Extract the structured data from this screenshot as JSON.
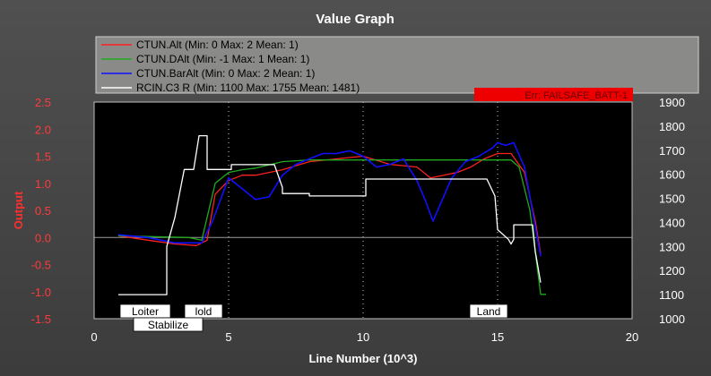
{
  "window": {
    "title": "Value Graph"
  },
  "error_banner": {
    "text": "Err: FAILSAFE_BATT-1",
    "color": "#ee0000"
  },
  "colors": {
    "background": "#000000",
    "frame": "#474747",
    "legend_bg": "#8a8a88",
    "left_axis": "#ff3b3b",
    "right_axis": "#ffffff",
    "mode_box": "#ffffff"
  },
  "chart_data": {
    "type": "line",
    "title": "Value Graph",
    "xlabel": "Line Number (10^3)",
    "ylabel": "Output",
    "xlim": [
      0,
      20
    ],
    "ylim": [
      -1.5,
      2.5
    ],
    "y2lim": [
      1000,
      1900
    ],
    "x_ticks": [
      "0",
      "5",
      "10",
      "15",
      "20"
    ],
    "y_ticks": [
      "2.5",
      "2.0",
      "1.5",
      "1.0",
      "0.5",
      "0.0",
      "-0.5",
      "-1.0",
      "-1.5"
    ],
    "y2_ticks": [
      "1900",
      "1800",
      "1700",
      "1600",
      "1500",
      "1400",
      "1300",
      "1200",
      "1100",
      "1000"
    ],
    "grid": true,
    "legend_position": "top",
    "series": [
      {
        "name": "CTUN.Alt",
        "legend": "CTUN.Alt (Min: 0 Max: 2 Mean: 1)",
        "color": "#ff2020",
        "axis": "left",
        "x": [
          0.9,
          2,
          3,
          3.8,
          4.2,
          4.5,
          5,
          5.5,
          6,
          7,
          8,
          9,
          10,
          11,
          12,
          12.5,
          13,
          13.5,
          14,
          14.5,
          15,
          15.5,
          16,
          16.4,
          16.6
        ],
        "y": [
          0.03,
          -0.05,
          -0.12,
          -0.15,
          -0.05,
          0.8,
          1.05,
          1.15,
          1.15,
          1.25,
          1.4,
          1.45,
          1.5,
          1.35,
          1.3,
          1.1,
          1.15,
          1.2,
          1.3,
          1.45,
          1.55,
          1.55,
          1.2,
          0.3,
          -0.3
        ]
      },
      {
        "name": "CTUN.DAlt",
        "legend": "CTUN.DAlt (Min: -1 Max: 1 Mean: 1)",
        "color": "#1faa1f",
        "axis": "left",
        "x": [
          0.9,
          3.5,
          4,
          4.5,
          5,
          5.5,
          6,
          7,
          8,
          10,
          12,
          14,
          15,
          15.5,
          15.8,
          16.2,
          16.6,
          16.8
        ],
        "y": [
          0.03,
          0,
          -0.05,
          1.0,
          1.2,
          1.25,
          1.28,
          1.4,
          1.43,
          1.43,
          1.43,
          1.43,
          1.43,
          1.43,
          1.3,
          0.5,
          -1.05,
          -1.05
        ]
      },
      {
        "name": "CTUN.BarAlt",
        "legend": "CTUN.BarAlt (Min: 0 Max: 2 Mean: 1)",
        "color": "#1010ff",
        "axis": "left",
        "x": [
          0.9,
          2,
          3,
          4,
          4.4,
          5,
          5.5,
          6,
          6.5,
          7,
          7.5,
          8,
          8.5,
          9,
          9.5,
          10,
          10.5,
          11,
          11.5,
          12,
          12.3,
          12.6,
          12.9,
          13.3,
          13.8,
          14.3,
          14.8,
          15,
          15.3,
          15.6,
          16,
          16.4,
          16.6
        ],
        "y": [
          0.05,
          0,
          -0.1,
          -0.1,
          0.3,
          1.1,
          0.9,
          0.7,
          0.75,
          1.15,
          1.35,
          1.45,
          1.55,
          1.55,
          1.6,
          1.5,
          1.3,
          1.35,
          1.45,
          1.05,
          0.7,
          0.3,
          0.65,
          1.1,
          1.4,
          1.5,
          1.65,
          1.75,
          1.7,
          1.75,
          1.3,
          0.2,
          -0.35
        ]
      },
      {
        "name": "RCIN.C3 R",
        "legend": "RCIN.C3 R (Min: 1100 Max: 1755 Mean: 1481)",
        "color": "#ffffff",
        "axis": "right",
        "x": [
          0.9,
          2.7,
          2.7,
          3.0,
          3.35,
          3.7,
          3.9,
          4.2,
          4.2,
          5.1,
          5.1,
          6.7,
          7.0,
          7.0,
          8.0,
          8.0,
          10.1,
          10.1,
          14.6,
          14.9,
          15.0,
          15.4,
          15.5,
          15.6,
          15.6,
          16.3,
          16.4,
          16.6
        ],
        "y": [
          1100,
          1100,
          1300,
          1420,
          1620,
          1620,
          1760,
          1760,
          1620,
          1620,
          1640,
          1640,
          1545,
          1520,
          1520,
          1510,
          1510,
          1580,
          1580,
          1510,
          1370,
          1330,
          1310,
          1330,
          1390,
          1390,
          1280,
          1150
        ]
      }
    ],
    "annotations": [
      {
        "text": "Loiter",
        "x": 1.1,
        "row": 1
      },
      {
        "text": "lold",
        "x": 3.5,
        "row": 1
      },
      {
        "text": "Stabilize",
        "x": 1.6,
        "row": 2
      },
      {
        "text": "Land",
        "x": 14.1,
        "row": 1
      }
    ]
  }
}
